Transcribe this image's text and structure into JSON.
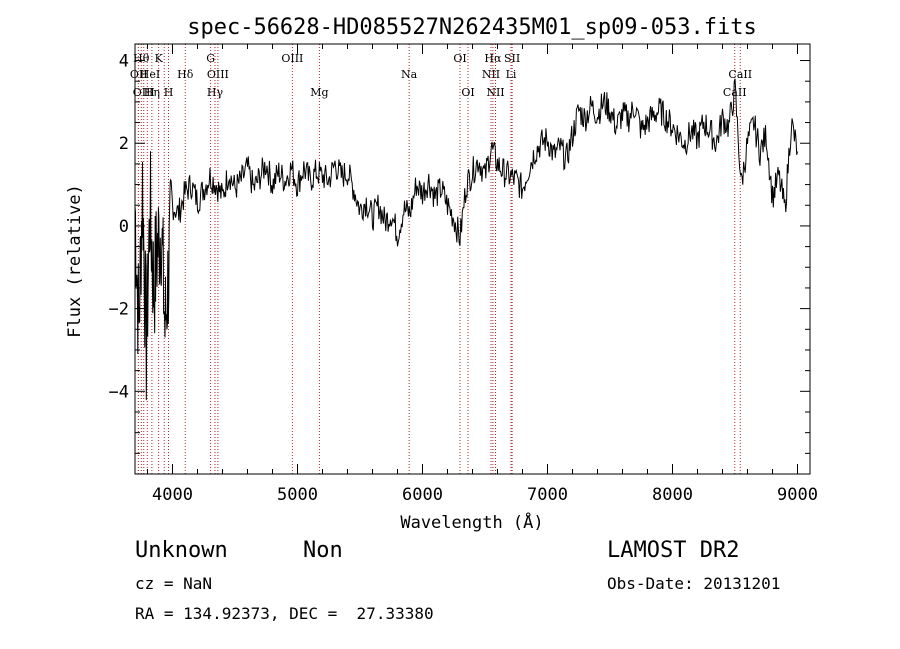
{
  "chart_data": {
    "type": "line",
    "title": "spec-56628-HD085527N262435M01_sp09-053.fits",
    "xlabel": "Wavelength (Å)",
    "ylabel": "Flux (relative)",
    "xlim": [
      3700,
      9100
    ],
    "ylim": [
      -6,
      4.4
    ],
    "xticks": [
      4000,
      5000,
      6000,
      7000,
      8000,
      9000
    ],
    "yticks": [
      -4,
      -2,
      0,
      2,
      4
    ],
    "grid": false,
    "series": [
      {
        "x": [
          3700,
          3730,
          3760,
          3790,
          3820,
          3850,
          3880,
          3910,
          3940,
          3970,
          4000,
          4050,
          4100,
          4150,
          4200,
          4250,
          4300,
          4350,
          4400,
          4450,
          4500,
          4550,
          4600,
          4650,
          4700,
          4750,
          4800,
          4850,
          4900,
          4950,
          5000,
          5050,
          5100,
          5150,
          5200,
          5250,
          5300,
          5350,
          5400,
          5450,
          5500,
          5550,
          5600,
          5650,
          5700,
          5750,
          5800,
          5850,
          5900,
          5950,
          6000,
          6050,
          6100,
          6150,
          6200,
          6250,
          6300,
          6350,
          6400,
          6450,
          6500,
          6550,
          6600,
          6650,
          6700,
          6750,
          6800,
          6850,
          6900,
          6950,
          7000,
          7050,
          7100,
          7150,
          7200,
          7250,
          7300,
          7350,
          7400,
          7450,
          7500,
          7550,
          7600,
          7650,
          7700,
          7750,
          7800,
          7850,
          7900,
          7950,
          8000,
          8050,
          8100,
          8150,
          8200,
          8250,
          8300,
          8350,
          8400,
          8450,
          8500,
          8550,
          8600,
          8650,
          8700,
          8750,
          8800,
          8850,
          8900,
          8950,
          9000
        ],
        "y": [
          0.5,
          -2.5,
          1.0,
          -3.0,
          0.5,
          -1.5,
          -0.5,
          0.0,
          -2.5,
          -1.0,
          0.5,
          0.3,
          0.8,
          1.0,
          0.6,
          0.9,
          1.2,
          1.0,
          0.7,
          1.3,
          0.9,
          1.1,
          1.4,
          0.9,
          1.2,
          1.5,
          1.0,
          1.3,
          1.1,
          1.4,
          1.0,
          1.4,
          1.1,
          1.3,
          1.2,
          1.1,
          1.5,
          1.2,
          1.3,
          0.9,
          0.4,
          0.6,
          0.2,
          0.5,
          0.1,
          0.3,
          -0.2,
          0.4,
          0.3,
          1.0,
          0.8,
          1.1,
          0.7,
          0.9,
          0.5,
          0.2,
          -0.3,
          1.0,
          1.3,
          1.6,
          1.2,
          1.9,
          1.5,
          1.3,
          1.2,
          1.1,
          0.9,
          1.4,
          1.8,
          2.0,
          2.1,
          1.7,
          1.9,
          1.6,
          2.2,
          2.8,
          2.6,
          2.9,
          2.7,
          3.0,
          2.8,
          2.4,
          2.7,
          2.6,
          2.9,
          2.3,
          2.5,
          2.7,
          2.8,
          2.6,
          2.4,
          2.2,
          2.0,
          2.3,
          2.1,
          2.5,
          2.3,
          2.0,
          2.6,
          2.4,
          3.3,
          1.0,
          2.0,
          2.5,
          1.8,
          2.2,
          0.7,
          1.2,
          0.4,
          2.5,
          1.8
        ]
      }
    ],
    "line_labels": [
      {
        "wave": 3750,
        "row": 0,
        "text": "Hθ"
      },
      {
        "wave": 3890,
        "row": 0,
        "text": "K"
      },
      {
        "wave": 4305,
        "row": 0,
        "text": "G"
      },
      {
        "wave": 4959,
        "row": 0,
        "text": "OIII"
      },
      {
        "wave": 6300,
        "row": 0,
        "text": "OI"
      },
      {
        "wave": 6563,
        "row": 0,
        "text": "Hα"
      },
      {
        "wave": 6717,
        "row": 0,
        "text": "SII"
      },
      {
        "wave": 3730,
        "row": 1,
        "text": "OII"
      },
      {
        "wave": 3820,
        "row": 1,
        "text": "HeI"
      },
      {
        "wave": 4102,
        "row": 1,
        "text": "Hδ"
      },
      {
        "wave": 4363,
        "row": 1,
        "text": "OIII"
      },
      {
        "wave": 5893,
        "row": 1,
        "text": "Na"
      },
      {
        "wave": 6548,
        "row": 1,
        "text": "NII"
      },
      {
        "wave": 6708,
        "row": 1,
        "text": "Li"
      },
      {
        "wave": 8542,
        "row": 1,
        "text": "CaII"
      },
      {
        "wave": 3770,
        "row": 2,
        "text": "OIII"
      },
      {
        "wave": 3835,
        "row": 2,
        "text": "Hη"
      },
      {
        "wave": 3968,
        "row": 2,
        "text": "H"
      },
      {
        "wave": 4340,
        "row": 2,
        "text": "Hγ"
      },
      {
        "wave": 5175,
        "row": 2,
        "text": "Mg"
      },
      {
        "wave": 6364,
        "row": 2,
        "text": "OI"
      },
      {
        "wave": 6584,
        "row": 2,
        "text": "NII"
      },
      {
        "wave": 8498,
        "row": 2,
        "text": "CaII"
      }
    ],
    "marker_lines": [
      3727,
      3750,
      3770,
      3798,
      3835,
      3889,
      3934,
      3968,
      4102,
      4305,
      4340,
      4363,
      4959,
      5175,
      5893,
      6300,
      6364,
      6548,
      6563,
      6584,
      6708,
      6717,
      8498,
      8542
    ]
  },
  "info": {
    "class_label": "Unknown",
    "subclass_label": "Non",
    "survey": "LAMOST DR2",
    "cz": "cz = NaN",
    "obs_date": "Obs-Date: 20131201",
    "coords": "RA = 134.92373, DEC =  27.33380"
  }
}
